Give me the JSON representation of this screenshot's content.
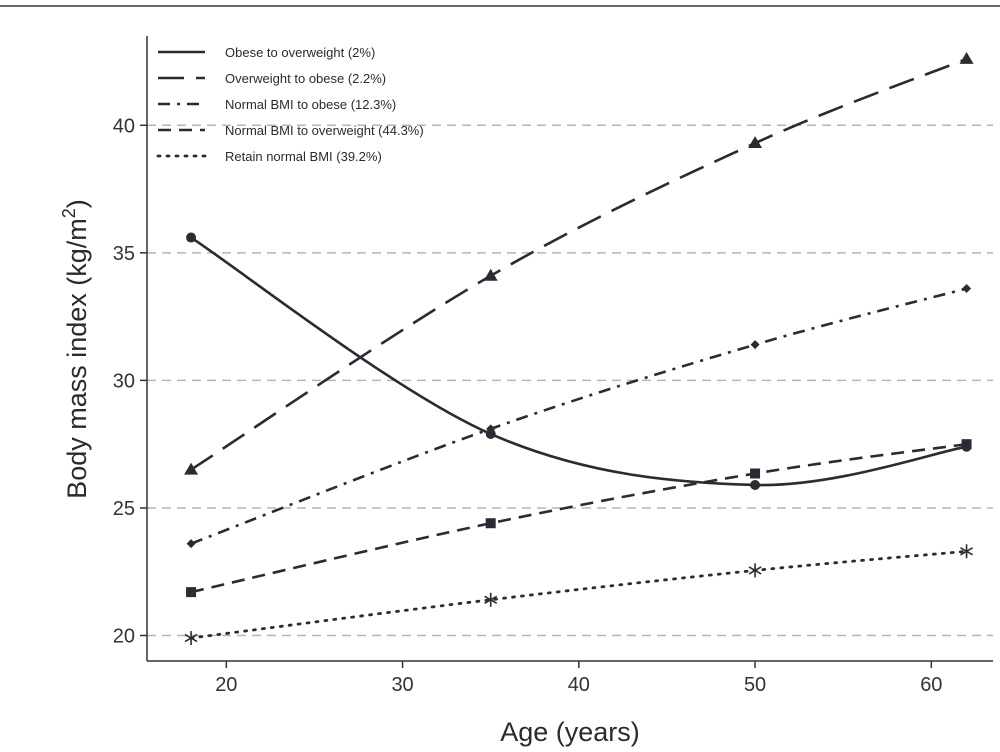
{
  "chart_data": {
    "type": "line",
    "xlabel": "Age (years)",
    "ylabel_main": "Body mass index (kg/m",
    "ylabel_sup": "2",
    "ylabel_close": ")",
    "xlim": [
      15.5,
      63.5
    ],
    "ylim": [
      19.0,
      43.5
    ],
    "x_ticks": [
      20,
      30,
      40,
      50,
      60
    ],
    "y_ticks": [
      20,
      25,
      30,
      35,
      40
    ],
    "grid": "horizontal dashed at y ticks",
    "legend_position": "top-left",
    "line_color": "#2b2b33",
    "grid_color": "#b5b5b5",
    "series": [
      {
        "name": "Obese to overweight (2%)",
        "style": "solid",
        "marker": "circle",
        "smooth": true,
        "x": [
          18,
          35,
          50,
          62
        ],
        "y": [
          35.6,
          27.9,
          25.9,
          27.4
        ]
      },
      {
        "name": "Overweight to obese (2.2%)",
        "style": "longdash",
        "marker": "triangle",
        "smooth": true,
        "x": [
          18,
          35,
          50,
          62
        ],
        "y": [
          26.5,
          34.1,
          39.3,
          42.6
        ]
      },
      {
        "name": "Normal BMI to obese (12.3%)",
        "style": "dashdot",
        "marker": "diamond",
        "smooth": true,
        "x": [
          18,
          35,
          50,
          62
        ],
        "y": [
          23.6,
          28.1,
          31.4,
          33.6
        ]
      },
      {
        "name": "Normal BMI to overweight (44.3%)",
        "style": "dashed",
        "marker": "square",
        "smooth": true,
        "x": [
          18,
          35,
          50,
          62
        ],
        "y": [
          21.7,
          24.4,
          26.35,
          27.5
        ]
      },
      {
        "name": "Retain normal BMI (39.2%)",
        "style": "dotted",
        "marker": "asterisk",
        "smooth": true,
        "x": [
          18,
          35,
          50,
          62
        ],
        "y": [
          19.9,
          21.4,
          22.55,
          23.3
        ]
      }
    ]
  }
}
